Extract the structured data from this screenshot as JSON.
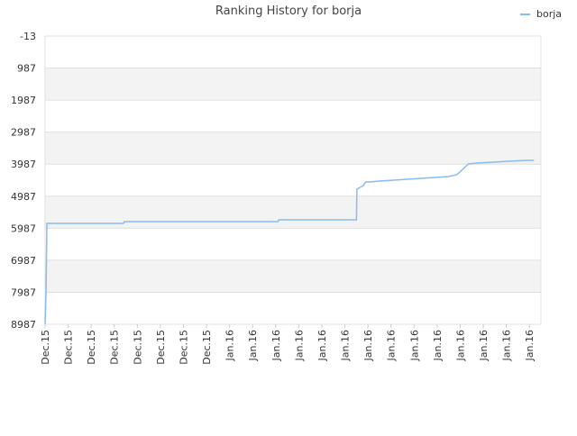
{
  "chart_data": {
    "type": "line",
    "title": "Ranking History for borja",
    "x": [
      0,
      0.04,
      0.08,
      3.4,
      3.44,
      10.1,
      10.14,
      13.5,
      13.52,
      13.8,
      13.9,
      14.06,
      14.5,
      15.1,
      15.7,
      16.3,
      16.9,
      17.5,
      17.85,
      18.36,
      18.75,
      19.45,
      20.1,
      20.9,
      21.2
    ],
    "series": [
      {
        "name": "borja",
        "color": "#88bbee",
        "values": [
          8987,
          7987,
          5837,
          5837,
          5780,
          5780,
          5724,
          5724,
          4768,
          4655,
          4543,
          4543,
          4515,
          4487,
          4458,
          4430,
          4402,
          4374,
          4318,
          3981,
          3953,
          3925,
          3897,
          3868,
          3868
        ]
      }
    ],
    "xlim": [
      0,
      21.5
    ],
    "xticks": [
      {
        "value": 0,
        "label": "Dec.15"
      },
      {
        "value": 1,
        "label": "Dec.15"
      },
      {
        "value": 2,
        "label": "Dec.15"
      },
      {
        "value": 3,
        "label": "Dec.15"
      },
      {
        "value": 4,
        "label": "Dec.15"
      },
      {
        "value": 5,
        "label": "Dec.15"
      },
      {
        "value": 6,
        "label": "Dec.15"
      },
      {
        "value": 7,
        "label": "Dec.15"
      },
      {
        "value": 8,
        "label": "Jan.16"
      },
      {
        "value": 9,
        "label": "Jan.16"
      },
      {
        "value": 10,
        "label": "Jan.16"
      },
      {
        "value": 11,
        "label": "Jan.16"
      },
      {
        "value": 12,
        "label": "Jan.16"
      },
      {
        "value": 13,
        "label": "Jan.16"
      },
      {
        "value": 14,
        "label": "Jan.16"
      },
      {
        "value": 15,
        "label": "Jan.16"
      },
      {
        "value": 16,
        "label": "Jan.16"
      },
      {
        "value": 17,
        "label": "Jan.16"
      },
      {
        "value": 18,
        "label": "Jan.16"
      },
      {
        "value": 19,
        "label": "Jan.16"
      },
      {
        "value": 20,
        "label": "Jan.16"
      },
      {
        "value": 21,
        "label": "Jan.16"
      }
    ],
    "ylim": [
      -13,
      8987
    ],
    "inverted_y": true,
    "yticks": [
      -13,
      987,
      1987,
      2987,
      3987,
      4987,
      5987,
      6987,
      7987,
      8987
    ],
    "grid": true,
    "banded": true,
    "legend": "top-right"
  }
}
